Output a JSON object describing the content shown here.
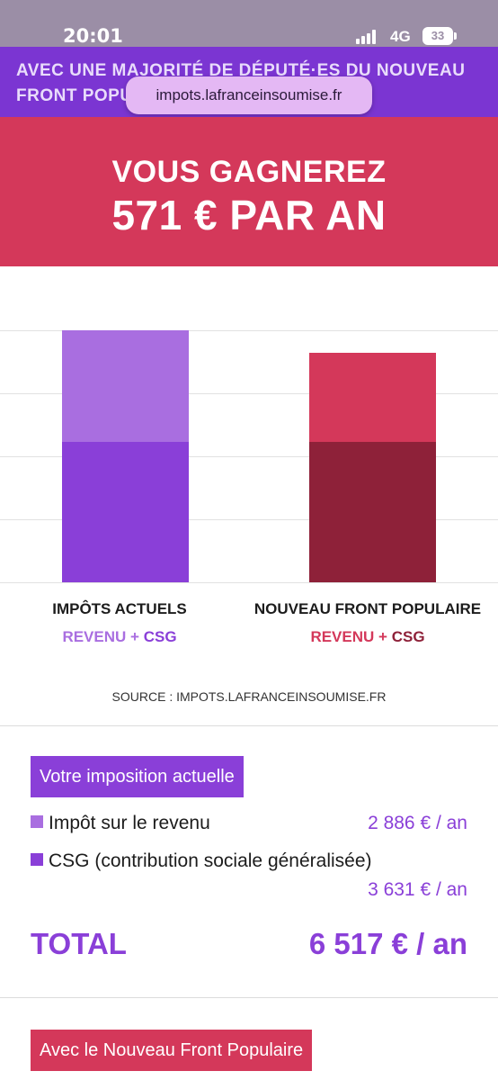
{
  "status_bar": {
    "time": "20:01",
    "network": "4G",
    "battery": "33"
  },
  "browser": {
    "url": "impots.lafranceinsoumise.fr"
  },
  "banner": {
    "line1": "AVEC UNE MAJORITÉ DE DÉPUTÉ·ES DU NOUVEAU",
    "line2": "FRONT POPULAIRE"
  },
  "hero": {
    "line1": "VOUS GAGNEREZ",
    "line2": "571 € PAR AN"
  },
  "colors": {
    "purple": "#8a3fd8",
    "purple_light": "#a96ee0",
    "red": "#d4385a",
    "red_dark": "#8e2139",
    "hero_bg": "#d4385a",
    "banner_bg": "#7b35d2"
  },
  "chart_data": {
    "type": "bar",
    "stacked": true,
    "categories": [
      "IMPÔTS ACTUELS",
      "NOUVEAU FRONT POPULAIRE"
    ],
    "series": [
      {
        "name": "CSG",
        "values": [
          3631,
          3631
        ]
      },
      {
        "name": "REVENU",
        "values": [
          2886,
          2315
        ]
      }
    ],
    "sublabels": [
      {
        "revenu": "REVENU",
        "plus": "+",
        "csg": "CSG"
      },
      {
        "revenu": "REVENU",
        "plus": "+",
        "csg": "CSG"
      }
    ],
    "grid": true,
    "source": "SOURCE : IMPOTS.LAFRANCEINSOUMISE.FR"
  },
  "current": {
    "title": "Votre imposition actuelle",
    "items": [
      {
        "label": "Impôt sur le revenu",
        "amount": "2 886 € / an"
      },
      {
        "label": "CSG (contribution sociale généralisée)",
        "amount": "3 631 € / an"
      }
    ],
    "total_label": "TOTAL",
    "total_value": "6 517 € / an"
  },
  "nfp": {
    "title": "Avec le Nouveau Front Populaire"
  }
}
